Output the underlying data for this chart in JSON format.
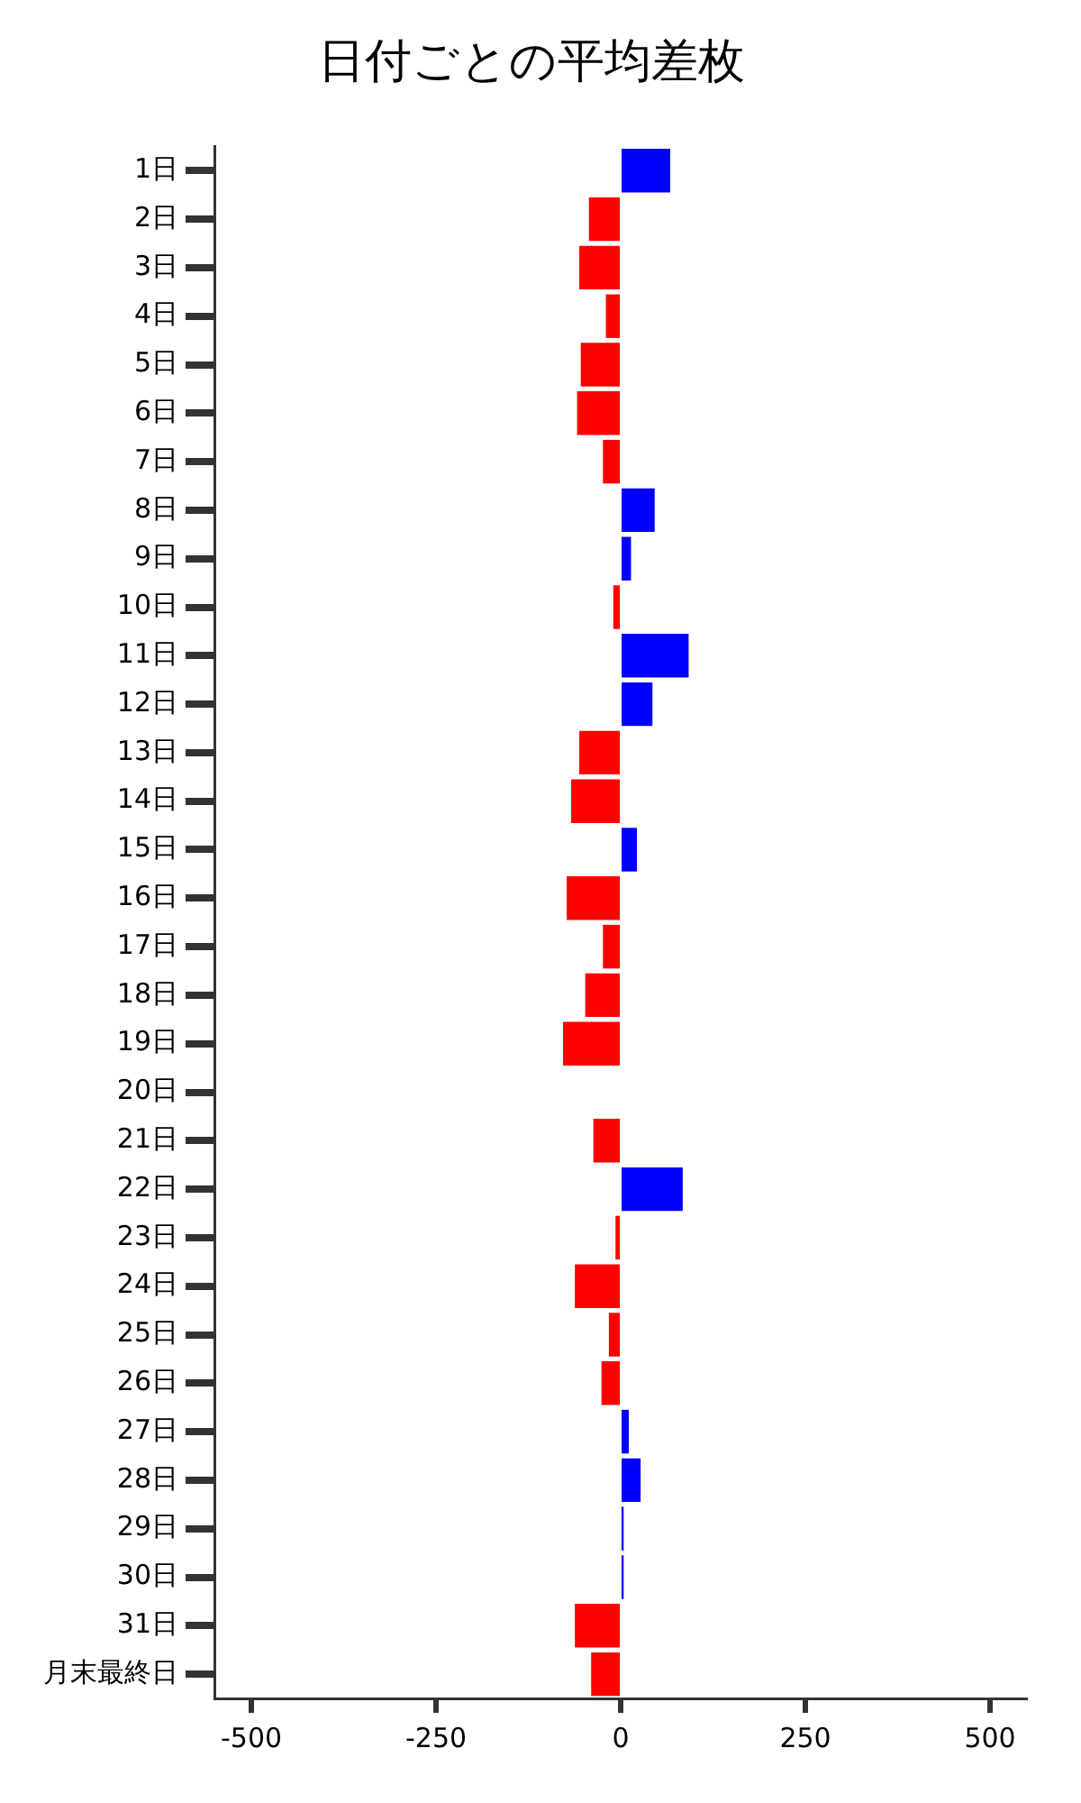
{
  "chart_data": {
    "type": "bar",
    "orientation": "horizontal",
    "title": "日付ごとの平均差枚",
    "categories": [
      "1日",
      "2日",
      "3日",
      "4日",
      "5日",
      "6日",
      "7日",
      "8日",
      "9日",
      "10日",
      "11日",
      "12日",
      "13日",
      "14日",
      "15日",
      "16日",
      "17日",
      "18日",
      "19日",
      "20日",
      "21日",
      "22日",
      "23日",
      "24日",
      "25日",
      "26日",
      "27日",
      "28日",
      "29日",
      "30日",
      "31日",
      "月末最終日"
    ],
    "values": [
      67,
      -43,
      -56,
      -20,
      -54,
      -59,
      -24,
      46,
      14,
      -10,
      92,
      43,
      -56,
      -67,
      22,
      -73,
      -24,
      -48,
      -78,
      0,
      -37,
      84,
      -7,
      -62,
      -16,
      -26,
      11,
      27,
      4,
      4,
      -62,
      -40
    ],
    "colors": [
      "#0000ff",
      "#ff0000",
      "#ff0000",
      "#ff0000",
      "#ff0000",
      "#ff0000",
      "#ff0000",
      "#0000ff",
      "#0000ff",
      "#ff0000",
      "#0000ff",
      "#0000ff",
      "#ff0000",
      "#ff0000",
      "#0000ff",
      "#ff0000",
      "#ff0000",
      "#ff0000",
      "#ff0000",
      "#ff0000",
      "#ff0000",
      "#0000ff",
      "#ff0000",
      "#ff0000",
      "#ff0000",
      "#ff0000",
      "#0000ff",
      "#0000ff",
      "#0000ff",
      "#0000ff",
      "#ff0000",
      "#ff0000"
    ],
    "xlim": [
      -550,
      550
    ],
    "xticks": [
      -500,
      -250,
      0,
      250,
      500
    ],
    "grid": false,
    "legend": false
  }
}
